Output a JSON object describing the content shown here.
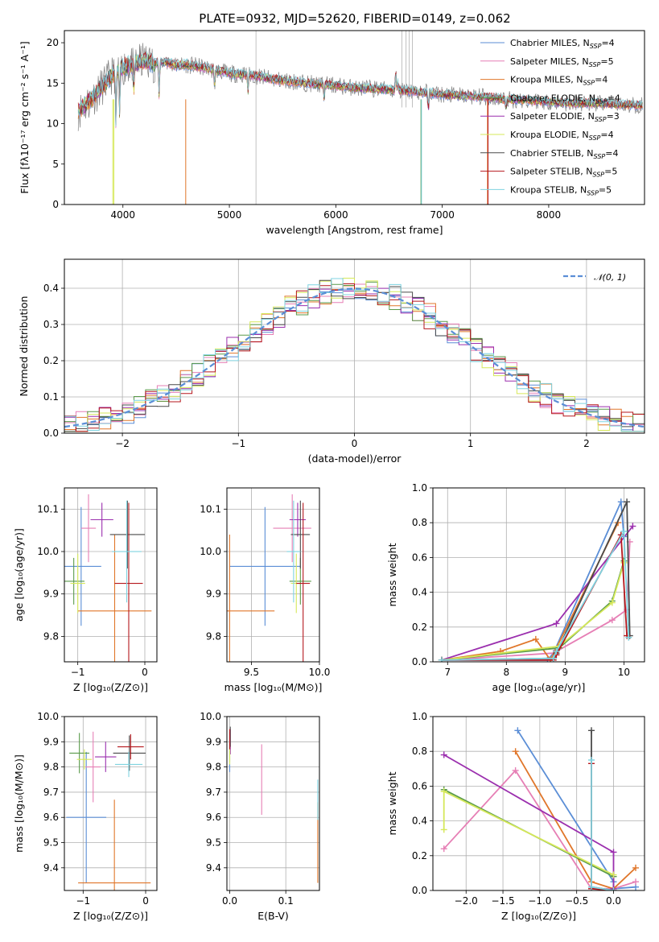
{
  "figure_title": "PLATE=0932, MJD=52620, FIBERID=0149, z=0.062",
  "colors": {
    "Chabrier MILES": "#5b8ed6",
    "Salpeter MILES": "#e67fb5",
    "Kroupa MILES": "#e0762a",
    "Chabrier ELODIE": "#5a9a4a",
    "Salpeter ELODIE": "#9b2fae",
    "Kroupa ELODIE": "#d6e85a",
    "Chabrier STELIB": "#4a4a4a",
    "Salpeter STELIB": "#b5171d",
    "Kroupa STELIB": "#7fd3e0"
  },
  "chart_data": [
    {
      "id": "spectrum",
      "type": "line",
      "xlabel": "wavelength [Angstrom, rest frame]",
      "ylabel": "Flux [fλ10⁻¹⁷ erg cm⁻² s⁻¹ A⁻¹]",
      "xlim": [
        3450,
        8900
      ],
      "ylim": [
        0,
        21.5
      ],
      "xticks": [
        4000,
        5000,
        6000,
        7000,
        8000
      ],
      "yticks": [
        0,
        5,
        10,
        15,
        20
      ],
      "legend_position": "top-right",
      "legend": [
        {
          "label": "Chabrier MILES, N",
          "sub": "SSP",
          "suffix": "=4",
          "color": "#5b8ed6"
        },
        {
          "label": "Salpeter MILES, N",
          "sub": "SSP",
          "suffix": "=5",
          "color": "#e67fb5"
        },
        {
          "label": "Kroupa MILES, N",
          "sub": "SSP",
          "suffix": "=4",
          "color": "#e0762a"
        },
        {
          "label": "Chabrier ELODIE, N",
          "sub": "SSP",
          "suffix": "=4",
          "color": "#5a9a4a"
        },
        {
          "label": "Salpeter ELODIE, N",
          "sub": "SSP",
          "suffix": "=3",
          "color": "#9b2fae"
        },
        {
          "label": "Kroupa ELODIE, N",
          "sub": "SSP",
          "suffix": "=4",
          "color": "#d6e85a"
        },
        {
          "label": "Chabrier STELIB, N",
          "sub": "SSP",
          "suffix": "=4",
          "color": "#4a4a4a"
        },
        {
          "label": "Salpeter STELIB, N",
          "sub": "SSP",
          "suffix": "=5",
          "color": "#b5171d"
        },
        {
          "label": "Kroupa STELIB, N",
          "sub": "SSP",
          "suffix": "=5",
          "color": "#7fd3e0"
        }
      ],
      "continuum_x": [
        3580,
        3700,
        3800,
        3900,
        4000,
        4100,
        4200,
        4300,
        4400,
        4500,
        4600,
        4800,
        5000,
        5200,
        5400,
        5600,
        5800,
        6000,
        6200,
        6400,
        6600,
        6800,
        7000,
        7200,
        7400,
        7600,
        7800,
        8000,
        8200,
        8400,
        8600,
        8800
      ],
      "continuum_y": [
        11.5,
        13.0,
        14.5,
        16.0,
        17.0,
        17.3,
        17.8,
        17.4,
        17.6,
        17.2,
        17.3,
        16.8,
        16.2,
        16.0,
        15.5,
        15.2,
        14.9,
        14.7,
        14.4,
        14.3,
        14.1,
        13.9,
        13.6,
        13.4,
        13.3,
        13.0,
        12.9,
        12.7,
        12.5,
        12.5,
        12.4,
        12.3
      ]
    },
    {
      "id": "residuals",
      "type": "line",
      "xlabel": "(data-model)/error",
      "ylabel": "Normed distribution",
      "xlim": [
        -2.5,
        2.5
      ],
      "ylim": [
        0,
        0.48
      ],
      "xticks": [
        -2,
        -1,
        0,
        1,
        2
      ],
      "yticks": [
        0.0,
        0.1,
        0.2,
        0.3,
        0.4
      ],
      "legend_position": "top-right",
      "legend": [
        {
          "label": "𝒩(0, 1)",
          "color": "#5b8ed6"
        }
      ],
      "normal": {
        "mean": 0,
        "sigma": 1
      }
    },
    {
      "id": "age_vs_z",
      "type": "scatter",
      "xlabel": "Z [log₁₀(Z/Z⊙)]",
      "ylabel": "age  [log₁₀(age/yr)]",
      "xlim": [
        -1.2,
        0.18
      ],
      "ylim": [
        9.74,
        10.15
      ],
      "xticks": [
        -1,
        0
      ],
      "yticks": [
        9.8,
        9.9,
        10.0,
        10.1
      ],
      "points": [
        {
          "model": "Chabrier MILES",
          "x": -0.95,
          "xerr": 0.3,
          "y": 9.965,
          "yerr": 0.14
        },
        {
          "model": "Salpeter MILES",
          "x": -0.84,
          "xerr": 0.11,
          "y": 10.055,
          "yerr": 0.08
        },
        {
          "model": "Kroupa MILES",
          "x": -0.45,
          "xerr": 0.55,
          "y": 9.86,
          "yerr": 0.18
        },
        {
          "model": "Chabrier ELODIE",
          "x": -1.06,
          "xerr": 0.16,
          "y": 9.93,
          "yerr": 0.055
        },
        {
          "model": "Salpeter ELODIE",
          "x": -0.64,
          "xerr": 0.17,
          "y": 10.075,
          "yerr": 0.04
        },
        {
          "model": "Kroupa ELODIE",
          "x": -1.0,
          "xerr": 0.11,
          "y": 9.925,
          "yerr": 0.07
        },
        {
          "model": "Chabrier STELIB",
          "x": -0.26,
          "xerr": 0.26,
          "y": 10.04,
          "yerr": 0.08
        },
        {
          "model": "Salpeter STELIB",
          "x": -0.24,
          "xerr": 0.21,
          "y": 9.925,
          "yerr": 0.19
        },
        {
          "model": "Kroupa STELIB",
          "x": -0.27,
          "xerr": 0.22,
          "y": 10.0,
          "yerr": 0.12
        }
      ]
    },
    {
      "id": "age_vs_mass",
      "type": "scatter",
      "xlabel": "mass [log₁₀(M/M⊙)]",
      "ylabel": "",
      "xlim": [
        9.32,
        10.0
      ],
      "ylim": [
        9.74,
        10.15
      ],
      "xticks": [
        9.5,
        10.0
      ],
      "yticks": [
        9.8,
        9.9,
        10.0,
        10.1
      ],
      "points": [
        {
          "model": "Chabrier MILES",
          "x": 9.6,
          "xerr": 0.26,
          "y": 9.965,
          "yerr": 0.14
        },
        {
          "model": "Salpeter MILES",
          "x": 9.8,
          "xerr": 0.14,
          "y": 10.055,
          "yerr": 0.08
        },
        {
          "model": "Kroupa MILES",
          "x": 9.34,
          "xerr": 0.33,
          "y": 9.86,
          "yerr": 0.18
        },
        {
          "model": "Chabrier ELODIE",
          "x": 9.86,
          "xerr": 0.08,
          "y": 9.93,
          "yerr": 0.055
        },
        {
          "model": "Salpeter ELODIE",
          "x": 9.84,
          "xerr": 0.06,
          "y": 10.075,
          "yerr": 0.04
        },
        {
          "model": "Kroupa ELODIE",
          "x": 9.83,
          "xerr": 0.04,
          "y": 9.925,
          "yerr": 0.07
        },
        {
          "model": "Chabrier STELIB",
          "x": 9.86,
          "xerr": 0.07,
          "y": 10.04,
          "yerr": 0.08
        },
        {
          "model": "Salpeter STELIB",
          "x": 9.88,
          "xerr": 0.05,
          "y": 9.925,
          "yerr": 0.19
        },
        {
          "model": "Kroupa STELIB",
          "x": 9.81,
          "xerr": 0.05,
          "y": 10.0,
          "yerr": 0.12
        }
      ]
    },
    {
      "id": "mass_weight_vs_age",
      "type": "line",
      "xlabel": "age  [log₁₀(age/yr)]",
      "ylabel": "mass weight",
      "xlim": [
        6.75,
        10.35
      ],
      "ylim": [
        0,
        1.0
      ],
      "xticks": [
        7,
        8,
        9,
        10
      ],
      "yticks": [
        0.0,
        0.2,
        0.4,
        0.6,
        0.8,
        1.0
      ],
      "series": [
        {
          "model": "Chabrier MILES",
          "x": [
            6.9,
            8.7,
            8.8,
            9.95,
            10.0
          ],
          "y": [
            0.01,
            0.01,
            0.05,
            0.92,
            0.72
          ]
        },
        {
          "model": "Salpeter MILES",
          "x": [
            6.9,
            8.8,
            9.8,
            10.05,
            10.1
          ],
          "y": [
            0.01,
            0.05,
            0.24,
            0.3,
            0.69
          ]
        },
        {
          "model": "Kroupa MILES",
          "x": [
            6.9,
            7.9,
            8.5,
            8.75,
            9.9
          ],
          "y": [
            0.01,
            0.06,
            0.13,
            0.01,
            0.8
          ]
        },
        {
          "model": "Chabrier ELODIE",
          "x": [
            6.9,
            8.9,
            9.8,
            10.0
          ],
          "y": [
            0.01,
            0.08,
            0.35,
            0.58
          ]
        },
        {
          "model": "Salpeter ELODIE",
          "x": [
            6.9,
            8.85,
            10.15
          ],
          "y": [
            0.01,
            0.22,
            0.78
          ]
        },
        {
          "model": "Kroupa ELODIE",
          "x": [
            6.9,
            8.9,
            9.8,
            10.0
          ],
          "y": [
            0.01,
            0.09,
            0.34,
            0.57
          ]
        },
        {
          "model": "Chabrier STELIB",
          "x": [
            6.9,
            8.8,
            8.85,
            10.05,
            10.1
          ],
          "y": [
            0.01,
            0.02,
            0.05,
            0.92,
            0.15
          ]
        },
        {
          "model": "Salpeter STELIB",
          "x": [
            6.9,
            8.8,
            8.85,
            9.95,
            10.05
          ],
          "y": [
            0.01,
            0.01,
            0.04,
            0.73,
            0.15
          ]
        },
        {
          "model": "Kroupa STELIB",
          "x": [
            6.9,
            8.8,
            8.85,
            10.0,
            10.08
          ],
          "y": [
            0.01,
            0.02,
            0.06,
            0.75,
            0.14
          ]
        }
      ]
    },
    {
      "id": "mass_vs_z",
      "type": "scatter",
      "xlabel": "Z [log₁₀(Z/Z⊙)]",
      "ylabel": "mass [log₁₀(M/M⊙)]",
      "xlim": [
        -1.3,
        0.18
      ],
      "ylim": [
        9.31,
        10.0
      ],
      "xticks": [
        -1,
        0
      ],
      "yticks": [
        9.4,
        9.5,
        9.6,
        9.7,
        9.8,
        9.9,
        10.0
      ],
      "points": [
        {
          "model": "Chabrier MILES",
          "x": -0.95,
          "xerr": 0.32,
          "y": 9.6,
          "yerr": 0.26
        },
        {
          "model": "Salpeter MILES",
          "x": -0.84,
          "xerr": 0.12,
          "y": 9.8,
          "yerr": 0.14
        },
        {
          "model": "Kroupa MILES",
          "x": -0.5,
          "xerr": 0.58,
          "y": 9.34,
          "yerr": 0.33
        },
        {
          "model": "Chabrier ELODIE",
          "x": -1.06,
          "xerr": 0.16,
          "y": 9.855,
          "yerr": 0.08
        },
        {
          "model": "Salpeter ELODIE",
          "x": -0.64,
          "xerr": 0.17,
          "y": 9.84,
          "yerr": 0.06
        },
        {
          "model": "Kroupa ELODIE",
          "x": -0.98,
          "xerr": 0.12,
          "y": 9.83,
          "yerr": 0.04
        },
        {
          "model": "Chabrier STELIB",
          "x": -0.26,
          "xerr": 0.26,
          "y": 9.855,
          "yerr": 0.07
        },
        {
          "model": "Salpeter STELIB",
          "x": -0.24,
          "xerr": 0.21,
          "y": 9.88,
          "yerr": 0.05
        },
        {
          "model": "Kroupa STELIB",
          "x": -0.27,
          "xerr": 0.22,
          "y": 9.81,
          "yerr": 0.05
        }
      ]
    },
    {
      "id": "mass_vs_ebv",
      "type": "scatter",
      "xlabel": "E(B-V)",
      "ylabel": "",
      "xlim": [
        -0.005,
        0.16
      ],
      "ylim": [
        9.31,
        10.0
      ],
      "xticks": [
        0.0,
        0.1
      ],
      "yticks": [
        9.4,
        9.5,
        9.6,
        9.7,
        9.8,
        9.9,
        10.0
      ],
      "points": [
        {
          "model": "Chabrier MILES",
          "x": 0.0,
          "xerr": 0,
          "y": 9.86,
          "yerr": 0.08
        },
        {
          "model": "Salpeter MILES",
          "x": 0.057,
          "xerr": 0,
          "y": 9.75,
          "yerr": 0.14
        },
        {
          "model": "Kroupa MILES",
          "x": 0.157,
          "xerr": 0,
          "y": 9.5,
          "yerr": 0.16
        },
        {
          "model": "Chabrier ELODIE",
          "x": 0.0,
          "xerr": 0,
          "y": 9.88,
          "yerr": 0.06
        },
        {
          "model": "Salpeter ELODIE",
          "x": 0.001,
          "xerr": 0,
          "y": 9.9,
          "yerr": 0.05
        },
        {
          "model": "Kroupa ELODIE",
          "x": 0.0,
          "xerr": 0,
          "y": 9.85,
          "yerr": 0.04
        },
        {
          "model": "Chabrier STELIB",
          "x": 0.001,
          "xerr": 0,
          "y": 9.92,
          "yerr": 0.04
        },
        {
          "model": "Salpeter STELIB",
          "x": 0.0,
          "xerr": 0,
          "y": 9.91,
          "yerr": 0.04
        },
        {
          "model": "Kroupa STELIB",
          "x": 0.157,
          "xerr": 0,
          "y": 9.67,
          "yerr": 0.08
        }
      ]
    },
    {
      "id": "mass_weight_vs_z",
      "type": "line",
      "xlabel": "Z [log₁₀(Z/Z⊙)]",
      "ylabel": "mass weight",
      "xlim": [
        -2.45,
        0.42
      ],
      "ylim": [
        0,
        1.0
      ],
      "xticks": [
        -2.0,
        -1.5,
        -1.0,
        -0.5,
        0.0
      ],
      "yticks": [
        0.0,
        0.2,
        0.4,
        0.6,
        0.8,
        1.0
      ],
      "series": [
        {
          "model": "Chabrier MILES",
          "x": [
            -1.3,
            0.0,
            0.0,
            0.3
          ],
          "y": [
            0.92,
            0.05,
            0.01,
            0.02
          ]
        },
        {
          "model": "Salpeter MILES",
          "x": [
            -2.3,
            -1.33,
            -0.3,
            0.0,
            0.3
          ],
          "y": [
            0.24,
            0.69,
            0.01,
            0.01,
            0.05
          ]
        },
        {
          "model": "Kroupa MILES",
          "x": [
            -1.33,
            -0.3,
            0.0,
            0.3
          ],
          "y": [
            0.8,
            0.05,
            0.01,
            0.13
          ]
        },
        {
          "model": "Chabrier ELODIE",
          "x": [
            -2.3,
            0.0,
            0.0
          ],
          "y": [
            0.58,
            0.08,
            0.01
          ]
        },
        {
          "model": "Salpeter ELODIE",
          "x": [
            -2.3,
            0.0,
            0.0
          ],
          "y": [
            0.78,
            0.22,
            0.01
          ]
        },
        {
          "model": "Kroupa ELODIE",
          "x": [
            -2.3,
            -2.3,
            0.0
          ],
          "y": [
            0.35,
            0.57,
            0.09
          ]
        },
        {
          "model": "Chabrier STELIB",
          "x": [
            -0.3,
            -0.3,
            0.0
          ],
          "y": [
            0.92,
            0.02,
            0.0
          ]
        },
        {
          "model": "Salpeter STELIB",
          "x": [
            -0.3,
            -0.3,
            0.0
          ],
          "y": [
            0.73,
            0.01,
            0.0
          ]
        },
        {
          "model": "Kroupa STELIB",
          "x": [
            -0.3,
            -0.3,
            0.0
          ],
          "y": [
            0.75,
            0.02,
            0.0
          ]
        }
      ]
    }
  ]
}
